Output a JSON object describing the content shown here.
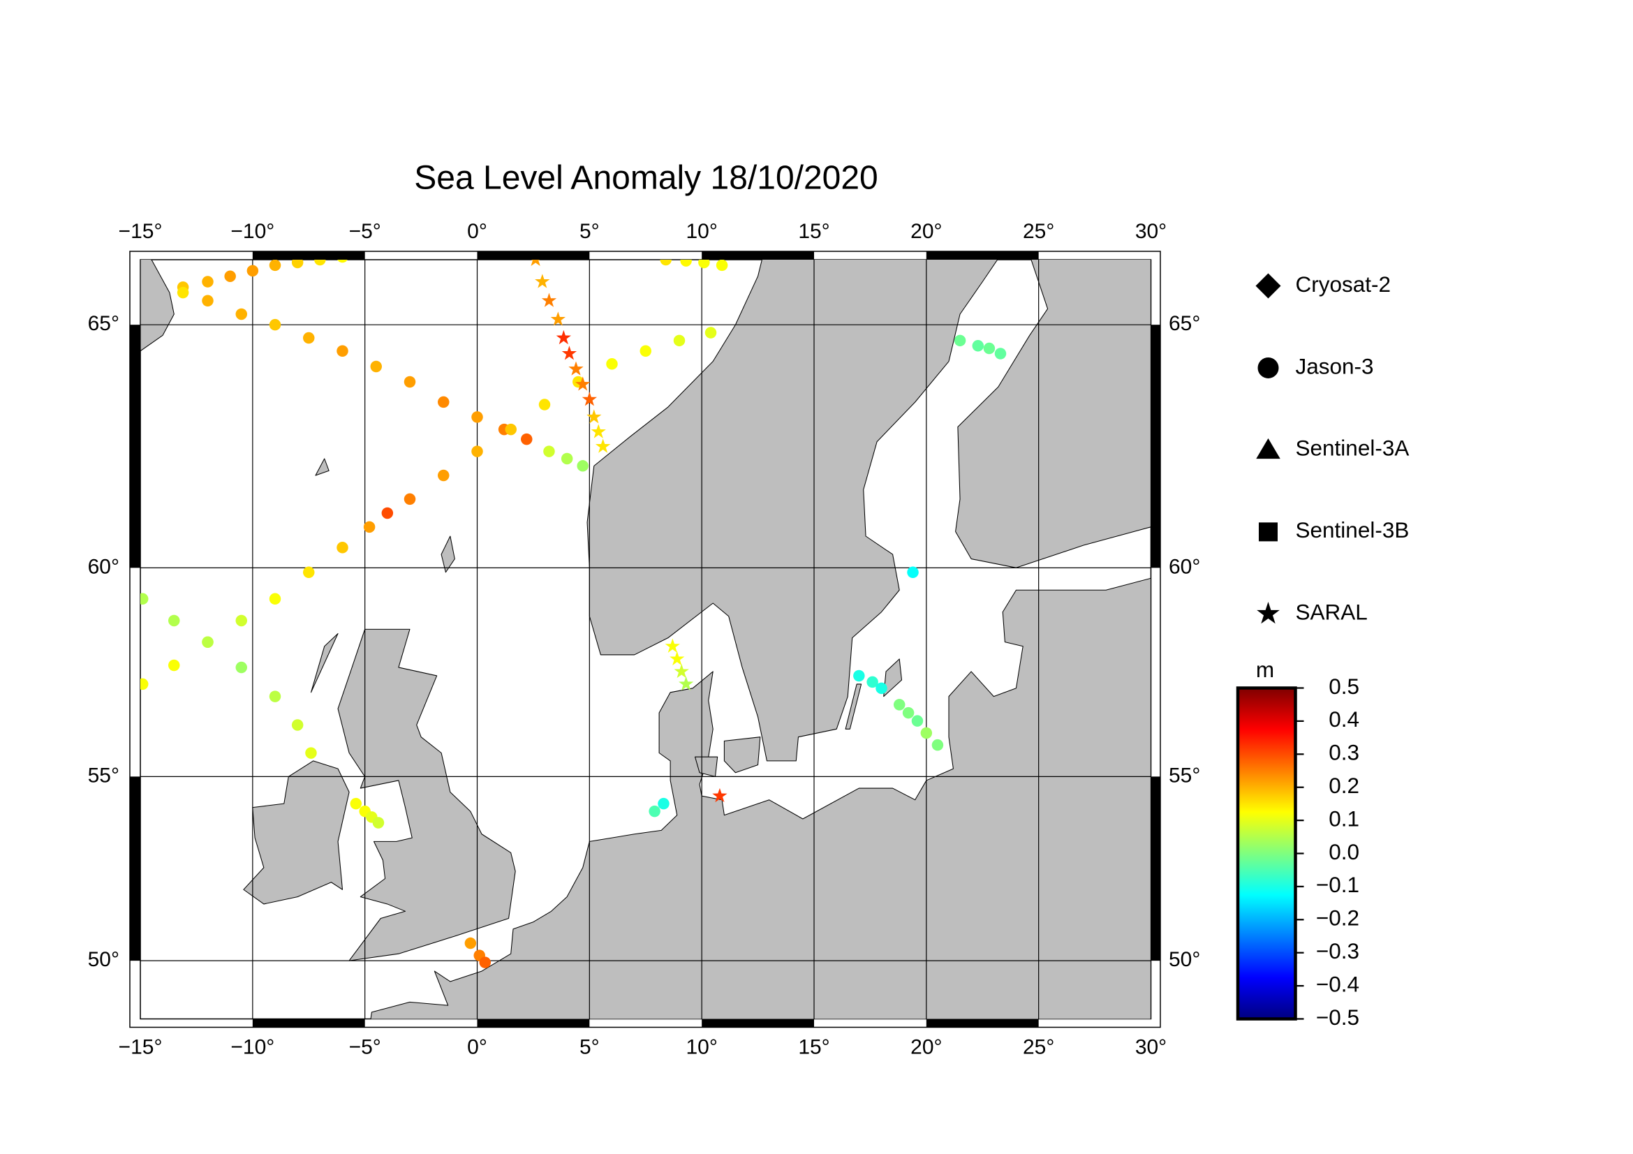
{
  "chart_data": {
    "type": "scatter",
    "title": "Sea Level Anomaly 18/10/2020",
    "projection": "mercator",
    "xlim": [
      -15,
      30
    ],
    "ylim": [
      48.3,
      66.2
    ],
    "xticks": [
      {
        "value": -15,
        "label": "−15°"
      },
      {
        "value": -10,
        "label": "−10°"
      },
      {
        "value": -5,
        "label": "−5°"
      },
      {
        "value": 0,
        "label": "0°"
      },
      {
        "value": 5,
        "label": "5°"
      },
      {
        "value": 10,
        "label": "10°"
      },
      {
        "value": 15,
        "label": "15°"
      },
      {
        "value": 20,
        "label": "20°"
      },
      {
        "value": 25,
        "label": "25°"
      },
      {
        "value": 30,
        "label": "30°"
      }
    ],
    "yticks": [
      {
        "value": 50,
        "label": "50°"
      },
      {
        "value": 55,
        "label": "55°"
      },
      {
        "value": 60,
        "label": "60°"
      },
      {
        "value": 65,
        "label": "65°"
      }
    ],
    "grid": true,
    "land_color": "#bebebe",
    "colorbar": {
      "label": "m",
      "clim": [
        -0.5,
        0.5
      ],
      "colors": [
        "#00007f",
        "#0000ff",
        "#007fff",
        "#00ffff",
        "#7fff7f",
        "#ffff00",
        "#ff7f00",
        "#ff0000",
        "#7f0000"
      ],
      "ticks": [
        {
          "value": 0.5,
          "label": "0.5"
        },
        {
          "value": 0.4,
          "label": "0.4"
        },
        {
          "value": 0.3,
          "label": "0.3"
        },
        {
          "value": 0.2,
          "label": "0.2"
        },
        {
          "value": 0.1,
          "label": "0.1"
        },
        {
          "value": 0,
          "label": "0.0"
        },
        {
          "value": -0.1,
          "label": "−0.1"
        },
        {
          "value": -0.2,
          "label": "−0.2"
        },
        {
          "value": -0.3,
          "label": "−0.3"
        },
        {
          "value": -0.4,
          "label": "−0.4"
        },
        {
          "value": -0.5,
          "label": "−0.5"
        }
      ]
    },
    "series": [
      {
        "name": "Cryosat-2",
        "marker": "diamond",
        "x": [],
        "y": [],
        "values": []
      },
      {
        "name": "Jason-3",
        "marker": "circle",
        "x": [
          -13.1,
          -12.0,
          -11.0,
          -10.0,
          -9.0,
          -8.0,
          -7.0,
          -6.0,
          -13.1,
          -12.0,
          -10.5,
          -9.0,
          -7.5,
          -6.0,
          -4.5,
          -3.0,
          -1.5,
          0.0,
          1.2,
          2.2,
          3.2,
          4.0,
          4.7,
          -14.9,
          -13.5,
          -12.0,
          -10.5,
          -9.0,
          -7.5,
          -6.0,
          -4.8,
          -4.0,
          -3.0,
          -1.5,
          0.0,
          1.5,
          3.0,
          4.5,
          6.0,
          7.5,
          9.0,
          10.4,
          -14.9,
          -13.5,
          -12.0,
          -10.5,
          -9.0,
          -8.0,
          -7.4,
          8.4,
          9.3,
          10.1,
          10.9,
          -5.4,
          -5.0,
          -4.7,
          -4.4,
          -0.3,
          0.1,
          0.35,
          7.9,
          8.3,
          17.0,
          17.6,
          18.0,
          18.8,
          19.2,
          19.6,
          20.0,
          20.5,
          19.4,
          21.5,
          22.3,
          22.8,
          23.3
        ],
        "y": [
          65.7,
          65.8,
          65.9,
          66.0,
          66.1,
          66.15,
          66.2,
          66.25,
          65.6,
          65.45,
          65.2,
          65.0,
          64.75,
          64.5,
          64.2,
          63.9,
          63.5,
          63.2,
          62.95,
          62.75,
          62.5,
          62.35,
          62.2,
          57.3,
          57.75,
          58.3,
          58.8,
          59.3,
          59.9,
          60.45,
          60.9,
          61.2,
          61.5,
          62.0,
          62.5,
          62.95,
          63.45,
          63.9,
          64.25,
          64.5,
          64.7,
          64.85,
          59.3,
          58.8,
          58.3,
          57.7,
          57.0,
          56.3,
          55.6,
          66.2,
          66.18,
          66.15,
          66.1,
          54.3,
          54.1,
          53.95,
          53.8,
          50.5,
          50.15,
          49.95,
          54.1,
          54.3,
          57.5,
          57.35,
          57.2,
          56.8,
          56.6,
          56.4,
          56.1,
          55.8,
          59.9,
          64.7,
          64.6,
          64.55,
          64.45
        ],
        "values": [
          0.18,
          0.2,
          0.22,
          0.22,
          0.2,
          0.17,
          0.15,
          0.13,
          0.15,
          0.2,
          0.2,
          0.18,
          0.2,
          0.22,
          0.2,
          0.22,
          0.24,
          0.22,
          0.25,
          0.28,
          0.08,
          0.05,
          0.03,
          0.12,
          0.12,
          0.1,
          0.08,
          0.12,
          0.15,
          0.18,
          0.22,
          0.3,
          0.25,
          0.22,
          0.2,
          0.18,
          0.15,
          0.15,
          0.12,
          0.12,
          0.1,
          0.1,
          0.05,
          0.05,
          0.06,
          0.03,
          0.06,
          0.08,
          0.1,
          0.15,
          0.13,
          0.12,
          0.12,
          0.12,
          0.12,
          0.1,
          0.08,
          0.22,
          0.25,
          0.28,
          -0.05,
          -0.1,
          -0.1,
          -0.08,
          -0.1,
          0.0,
          0.0,
          -0.02,
          0.03,
          0.0,
          -0.12,
          -0.02,
          -0.03,
          -0.02,
          -0.03
        ]
      },
      {
        "name": "Sentinel-3A",
        "marker": "triangle",
        "x": [],
        "y": [],
        "values": []
      },
      {
        "name": "Sentinel-3B",
        "marker": "square",
        "x": [],
        "y": [],
        "values": []
      },
      {
        "name": "SARAL",
        "marker": "star",
        "x": [
          2.6,
          2.9,
          3.2,
          3.6,
          3.85,
          4.1,
          4.4,
          4.7,
          5.0,
          5.2,
          5.4,
          5.6,
          8.7,
          8.9,
          9.1,
          9.3,
          10.8
        ],
        "y": [
          66.2,
          65.8,
          65.45,
          65.1,
          64.75,
          64.45,
          64.15,
          63.85,
          63.55,
          63.2,
          62.9,
          62.6,
          58.2,
          57.9,
          57.6,
          57.3,
          54.5
        ],
        "values": [
          0.22,
          0.2,
          0.25,
          0.22,
          0.33,
          0.32,
          0.25,
          0.25,
          0.28,
          0.18,
          0.15,
          0.15,
          0.12,
          0.12,
          0.08,
          0.05,
          0.32
        ]
      }
    ]
  }
}
